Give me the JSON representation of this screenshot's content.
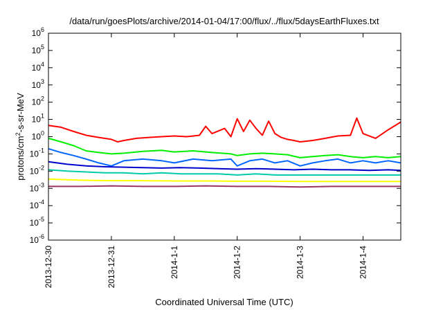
{
  "chart_data": {
    "type": "line",
    "title": "/data/run/goesPlots/archive/2014-01-04/17:00/flux/../flux/5daysEarthFluxes.txt",
    "xlabel": "Coordinated Universal Time (UTC)",
    "ylabel_base": "protons/cm",
    "ylabel_sup": "2",
    "ylabel_rest": "-s-sr-MeV",
    "x_unit": "days since 2013-12-30 00:00 UTC",
    "xlim": [
      0,
      5.6
    ],
    "x_ticks": [
      {
        "value": 0,
        "label": "2013-12-30"
      },
      {
        "value": 1,
        "label": "2013-12-31"
      },
      {
        "value": 2,
        "label": "2014-1-1"
      },
      {
        "value": 3,
        "label": "2014-1-2"
      },
      {
        "value": 4,
        "label": "2014-1-3"
      },
      {
        "value": 5,
        "label": "2014-1-4"
      }
    ],
    "y_scale": "log",
    "ylim": [
      1e-06,
      1000000.0
    ],
    "y_ticks": [
      {
        "exp": "-6"
      },
      {
        "exp": "-5"
      },
      {
        "exp": "-4"
      },
      {
        "exp": "-3"
      },
      {
        "exp": "-2"
      },
      {
        "exp": "-1"
      },
      {
        "exp": "0"
      },
      {
        "exp": "1"
      },
      {
        "exp": "2"
      },
      {
        "exp": "3"
      },
      {
        "exp": "4"
      },
      {
        "exp": "5"
      },
      {
        "exp": "6"
      }
    ],
    "y_tick_base": "10",
    "grid": false,
    "series": [
      {
        "color": "#ff0000",
        "x": [
          0,
          0.2,
          0.4,
          0.6,
          0.8,
          1.0,
          1.1,
          1.2,
          1.4,
          1.6,
          1.8,
          2.0,
          2.2,
          2.4,
          2.5,
          2.6,
          2.8,
          2.9,
          3.0,
          3.1,
          3.2,
          3.3,
          3.4,
          3.5,
          3.6,
          3.7,
          3.8,
          3.9,
          4.0,
          4.2,
          4.4,
          4.6,
          4.8,
          4.9,
          5.0,
          5.2,
          5.4,
          5.6
        ],
        "values": [
          4.5,
          3.5,
          2.0,
          1.2,
          0.9,
          0.7,
          0.5,
          0.6,
          0.8,
          0.9,
          1.0,
          1.1,
          1.0,
          1.2,
          4.0,
          1.5,
          3.0,
          1.0,
          11.0,
          2.0,
          9.0,
          3.0,
          1.2,
          8.0,
          1.5,
          0.9,
          0.7,
          0.6,
          0.5,
          0.6,
          0.8,
          1.1,
          1.2,
          12.0,
          1.5,
          0.8,
          2.5,
          7.0
        ]
      },
      {
        "color": "#00ee00",
        "x": [
          0,
          0.2,
          0.4,
          0.6,
          0.8,
          1.0,
          1.2,
          1.5,
          1.8,
          2.0,
          2.3,
          2.6,
          2.9,
          3.0,
          3.2,
          3.4,
          3.6,
          3.8,
          4.0,
          4.2,
          4.4,
          4.6,
          4.8,
          5.0,
          5.2,
          5.4,
          5.6
        ],
        "values": [
          0.8,
          0.5,
          0.3,
          0.15,
          0.12,
          0.1,
          0.11,
          0.14,
          0.16,
          0.13,
          0.15,
          0.12,
          0.1,
          0.08,
          0.1,
          0.11,
          0.1,
          0.09,
          0.06,
          0.07,
          0.08,
          0.09,
          0.07,
          0.06,
          0.07,
          0.06,
          0.07
        ]
      },
      {
        "color": "#0066ff",
        "x": [
          0,
          0.2,
          0.4,
          0.6,
          0.8,
          1.0,
          1.2,
          1.5,
          1.8,
          2.0,
          2.3,
          2.6,
          2.9,
          3.0,
          3.2,
          3.4,
          3.6,
          3.8,
          4.0,
          4.2,
          4.4,
          4.6,
          4.8,
          5.0,
          5.2,
          5.4,
          5.6
        ],
        "values": [
          0.2,
          0.12,
          0.08,
          0.05,
          0.03,
          0.02,
          0.04,
          0.05,
          0.04,
          0.03,
          0.05,
          0.04,
          0.05,
          0.02,
          0.04,
          0.05,
          0.03,
          0.04,
          0.02,
          0.03,
          0.04,
          0.05,
          0.03,
          0.04,
          0.03,
          0.04,
          0.03
        ]
      },
      {
        "color": "#0000cc",
        "x": [
          0,
          0.3,
          0.6,
          0.9,
          1.2,
          1.5,
          1.8,
          2.1,
          2.4,
          2.7,
          3.0,
          3.3,
          3.6,
          3.9,
          4.2,
          4.5,
          4.8,
          5.1,
          5.4,
          5.6
        ],
        "values": [
          0.035,
          0.025,
          0.02,
          0.018,
          0.017,
          0.016,
          0.015,
          0.016,
          0.015,
          0.014,
          0.013,
          0.014,
          0.013,
          0.012,
          0.013,
          0.012,
          0.012,
          0.011,
          0.012,
          0.011
        ]
      },
      {
        "color": "#00ccaa",
        "x": [
          0,
          0.3,
          0.6,
          0.9,
          1.2,
          1.5,
          1.8,
          2.1,
          2.4,
          2.7,
          3.0,
          3.3,
          3.6,
          3.9,
          4.2,
          4.5,
          4.8,
          5.1,
          5.4,
          5.6
        ],
        "values": [
          0.012,
          0.01,
          0.009,
          0.008,
          0.008,
          0.007,
          0.008,
          0.007,
          0.007,
          0.007,
          0.006,
          0.007,
          0.006,
          0.006,
          0.006,
          0.006,
          0.006,
          0.006,
          0.006,
          0.006
        ]
      },
      {
        "color": "#ffff00",
        "x": [
          0,
          0.5,
          1.0,
          1.5,
          2.0,
          2.5,
          3.0,
          3.5,
          4.0,
          4.5,
          5.0,
          5.6
        ],
        "values": [
          0.0035,
          0.003,
          0.0028,
          0.0028,
          0.0027,
          0.0027,
          0.0026,
          0.0026,
          0.0025,
          0.0025,
          0.0025,
          0.0025
        ]
      },
      {
        "color": "#993366",
        "x": [
          0,
          0.5,
          1.0,
          1.5,
          2.0,
          2.5,
          3.0,
          3.5,
          4.0,
          4.5,
          5.0,
          5.6
        ],
        "values": [
          0.0013,
          0.0013,
          0.0014,
          0.0013,
          0.0013,
          0.0014,
          0.0013,
          0.0013,
          0.0012,
          0.0013,
          0.0013,
          0.0013
        ]
      }
    ]
  }
}
